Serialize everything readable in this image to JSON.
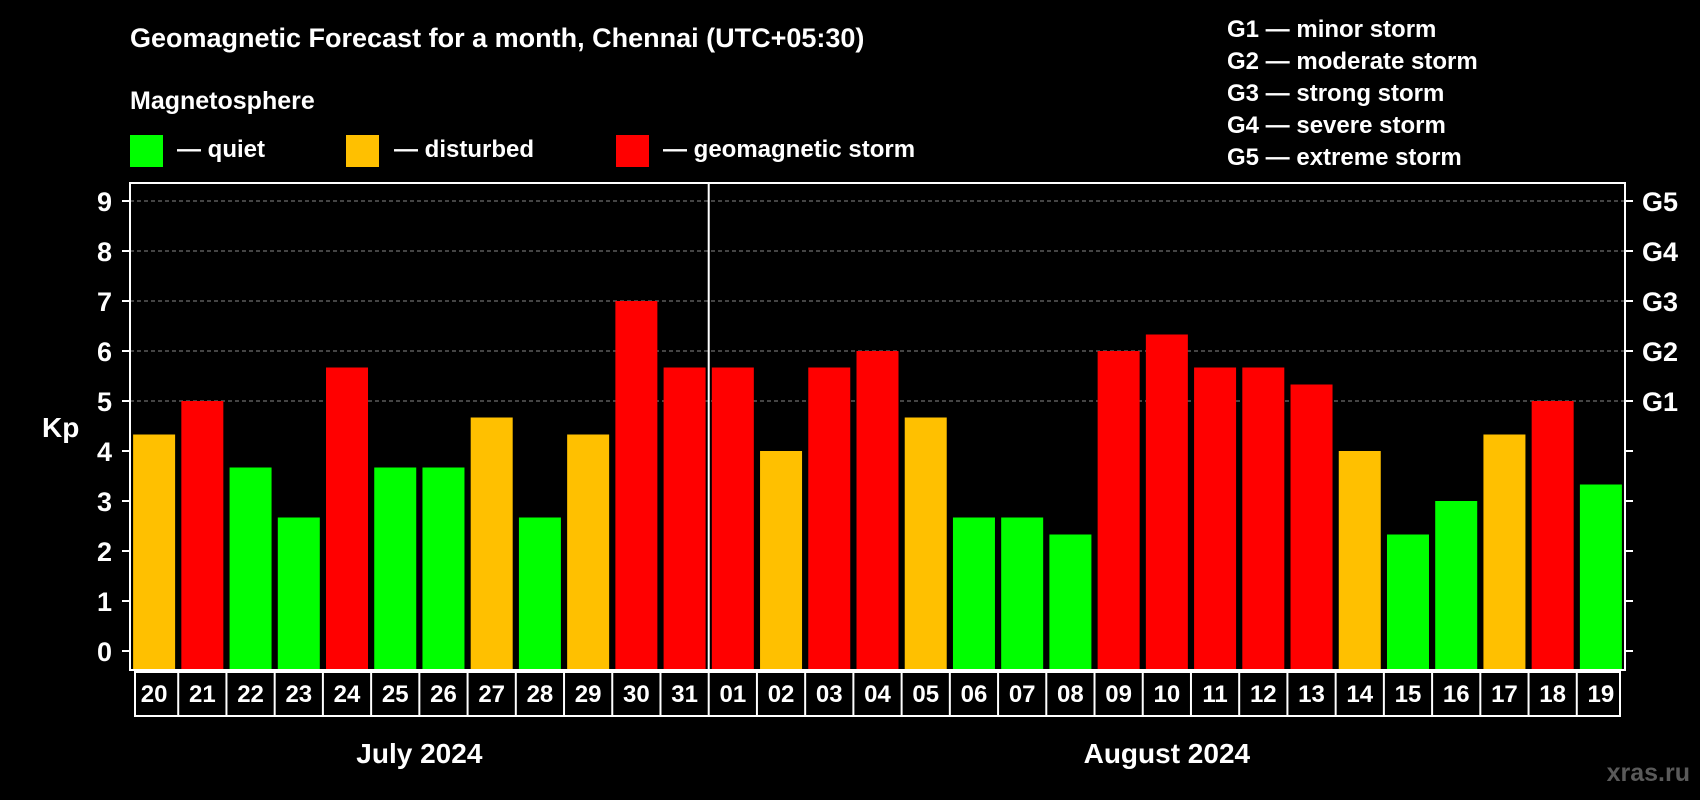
{
  "title": "Geomagnetic Forecast for a month, Chennai (UTC+05:30)",
  "magnetosphere_label": "Magnetosphere",
  "legend": [
    {
      "key": "quiet",
      "label": "— quiet",
      "color": "#00ff00"
    },
    {
      "key": "disturbed",
      "label": "— disturbed",
      "color": "#ffc000"
    },
    {
      "key": "storm",
      "label": "— geomagnetic storm",
      "color": "#ff0000"
    }
  ],
  "storm_levels": [
    "G1 — minor storm",
    "G2 — moderate storm",
    "G3 — strong storm",
    "G4 — severe storm",
    "G5 — extreme storm"
  ],
  "watermark": "xras.ru",
  "chart_data": {
    "type": "bar",
    "ylabel": "Kp",
    "ylim": [
      0,
      9
    ],
    "yticks": [
      0,
      1,
      2,
      3,
      4,
      5,
      6,
      7,
      8,
      9
    ],
    "grid": true,
    "right_axis_labels": [
      {
        "value": 5,
        "label": "G1"
      },
      {
        "value": 6,
        "label": "G2"
      },
      {
        "value": 7,
        "label": "G3"
      },
      {
        "value": 8,
        "label": "G4"
      },
      {
        "value": 9,
        "label": "G5"
      }
    ],
    "categories": [
      "20",
      "21",
      "22",
      "23",
      "24",
      "25",
      "26",
      "27",
      "28",
      "29",
      "30",
      "31",
      "01",
      "02",
      "03",
      "04",
      "05",
      "06",
      "07",
      "08",
      "09",
      "10",
      "11",
      "12",
      "13",
      "14",
      "15",
      "16",
      "17",
      "18",
      "19"
    ],
    "values": [
      4.33,
      5,
      3.67,
      2.67,
      5.67,
      3.67,
      3.67,
      4.67,
      2.67,
      4.33,
      7,
      5.67,
      5.67,
      4,
      5.67,
      6,
      4.67,
      2.67,
      2.67,
      2.33,
      6,
      6.33,
      5.67,
      5.67,
      5.33,
      4,
      2.33,
      3,
      4.33,
      5,
      3.33
    ],
    "levels": [
      "disturbed",
      "storm",
      "quiet",
      "quiet",
      "storm",
      "quiet",
      "quiet",
      "disturbed",
      "quiet",
      "disturbed",
      "storm",
      "storm",
      "storm",
      "disturbed",
      "storm",
      "storm",
      "disturbed",
      "quiet",
      "quiet",
      "quiet",
      "storm",
      "storm",
      "storm",
      "storm",
      "storm",
      "disturbed",
      "quiet",
      "quiet",
      "disturbed",
      "storm",
      "quiet"
    ],
    "month_groups": [
      {
        "label": "July 2024",
        "count": 12
      },
      {
        "label": "August 2024",
        "count": 19
      }
    ]
  }
}
